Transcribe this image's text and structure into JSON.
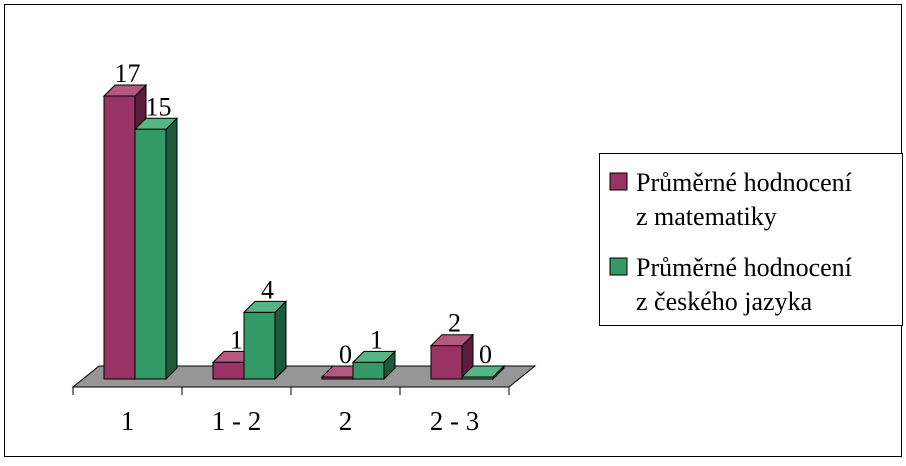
{
  "chart_data": {
    "type": "bar",
    "categories": [
      "1",
      "1 - 2",
      "2",
      "2 - 3"
    ],
    "series": [
      {
        "name": "Průměrné hodnocení z matematiky",
        "values": [
          17,
          1,
          0,
          2
        ]
      },
      {
        "name": "Průměrné hodnocení z českého jazyka",
        "values": [
          15,
          4,
          1,
          0
        ]
      }
    ],
    "ylim": [
      0,
      17
    ],
    "grid": false,
    "legend_position": "right",
    "data_labels": true,
    "legend": {
      "items": [
        {
          "line1": "Průměrné hodnocení",
          "line2": "z matematiky"
        },
        {
          "line1": "Průměrné hodnocení",
          "line2": "z českého jazyka"
        }
      ]
    },
    "colors": {
      "series1_front": "#993366",
      "series1_side": "#5a1d3c",
      "series1_top": "#b5587f",
      "series2_front": "#339966",
      "series2_side": "#1d5a3c",
      "series2_top": "#55b583",
      "floor": "#969696"
    }
  }
}
